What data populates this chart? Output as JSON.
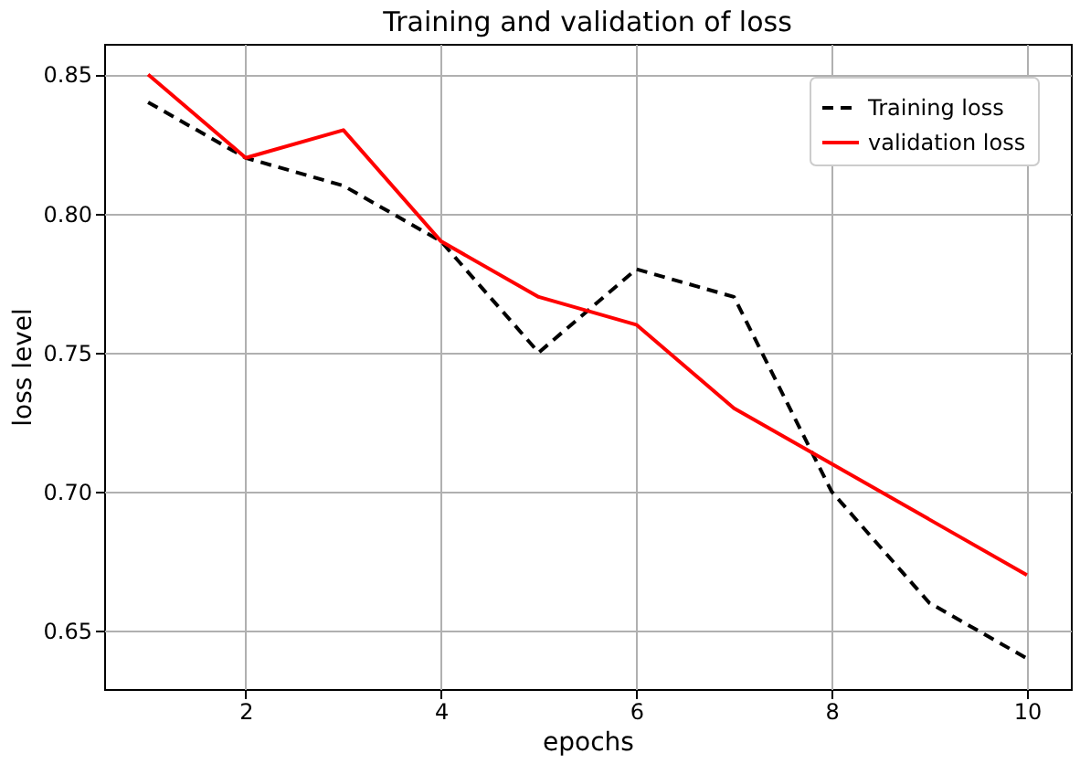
{
  "chart_data": {
    "type": "line",
    "title": "Training and validation of loss",
    "xlabel": "epochs",
    "ylabel": "loss level",
    "x": [
      1,
      2,
      3,
      4,
      5,
      6,
      7,
      8,
      9,
      10
    ],
    "series": [
      {
        "name": "Training loss",
        "color": "#000000",
        "line_style": "dashed",
        "values": [
          0.84,
          0.82,
          0.81,
          0.79,
          0.75,
          0.78,
          0.77,
          0.7,
          0.66,
          0.64
        ]
      },
      {
        "name": "validation loss",
        "color": "#ff0000",
        "line_style": "solid",
        "values": [
          0.85,
          0.82,
          0.83,
          0.79,
          0.77,
          0.76,
          0.73,
          0.71,
          0.69,
          0.67
        ]
      }
    ],
    "xlim": [
      0.55,
      10.45
    ],
    "xticks": [
      2,
      4,
      6,
      8,
      10
    ],
    "ylim": [
      0.629,
      0.861
    ],
    "yticks": [
      {
        "value": 0.65,
        "label": "0.65"
      },
      {
        "value": 0.7,
        "label": "0.70"
      },
      {
        "value": 0.75,
        "label": "0.75"
      },
      {
        "value": 0.8,
        "label": "0.80"
      },
      {
        "value": 0.85,
        "label": "0.85"
      }
    ],
    "grid": true,
    "legend": "top right",
    "marker": "none"
  }
}
